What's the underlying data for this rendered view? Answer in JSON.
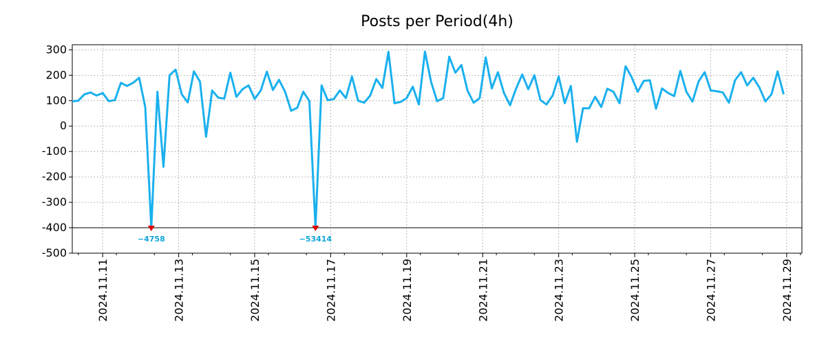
{
  "chart_data": {
    "type": "line",
    "title": "Posts per Period(4h)",
    "xlabel": "",
    "ylabel": "",
    "ylim": [
      -500,
      320
    ],
    "yticks": [
      300,
      200,
      100,
      0,
      -100,
      -200,
      -300,
      -400,
      -500
    ],
    "xlim": [
      0.0,
      120.0
    ],
    "reference_line": -400,
    "xticks": [
      {
        "x": 5,
        "label": "2024.11.11"
      },
      {
        "x": 17.5,
        "label": "2024.11.13"
      },
      {
        "x": 30,
        "label": "2024.11.15"
      },
      {
        "x": 42.5,
        "label": "2024.11.17"
      },
      {
        "x": 55,
        "label": "2024.11.19"
      },
      {
        "x": 67.5,
        "label": "2024.11.21"
      },
      {
        "x": 80,
        "label": "2024.11.23"
      },
      {
        "x": 92.5,
        "label": "2024.11.25"
      },
      {
        "x": 105,
        "label": "2024.11.27"
      },
      {
        "x": 117.5,
        "label": "2024.11.29"
      }
    ],
    "series": [
      {
        "name": "posts",
        "color": "#1ab0ee",
        "values": [
          97,
          100,
          125,
          132,
          120,
          130,
          98,
          102,
          170,
          158,
          170,
          190,
          75,
          -400,
          135,
          -160,
          200,
          222,
          125,
          93,
          215,
          175,
          -42,
          140,
          112,
          108,
          210,
          115,
          145,
          160,
          107,
          140,
          214,
          142,
          182,
          135,
          60,
          72,
          135,
          98,
          -400,
          160,
          102,
          106,
          140,
          110,
          195,
          100,
          92,
          120,
          185,
          150,
          292,
          90,
          95,
          110,
          155,
          85,
          293,
          175,
          98,
          110,
          273,
          210,
          240,
          140,
          92,
          110,
          270,
          148,
          212,
          130,
          82,
          148,
          203,
          145,
          200,
          102,
          85,
          120,
          195,
          90,
          158,
          -62,
          70,
          70,
          115,
          75,
          147,
          135,
          90,
          235,
          192,
          135,
          178,
          180,
          68,
          148,
          130,
          118,
          217,
          135,
          96,
          175,
          212,
          140,
          137,
          132,
          92,
          180,
          212,
          160,
          190,
          152,
          97,
          125,
          215,
          125
        ]
      }
    ],
    "annotations": [
      {
        "index": 13,
        "label": "−4758"
      },
      {
        "index": 40,
        "label": "−53414"
      }
    ]
  }
}
